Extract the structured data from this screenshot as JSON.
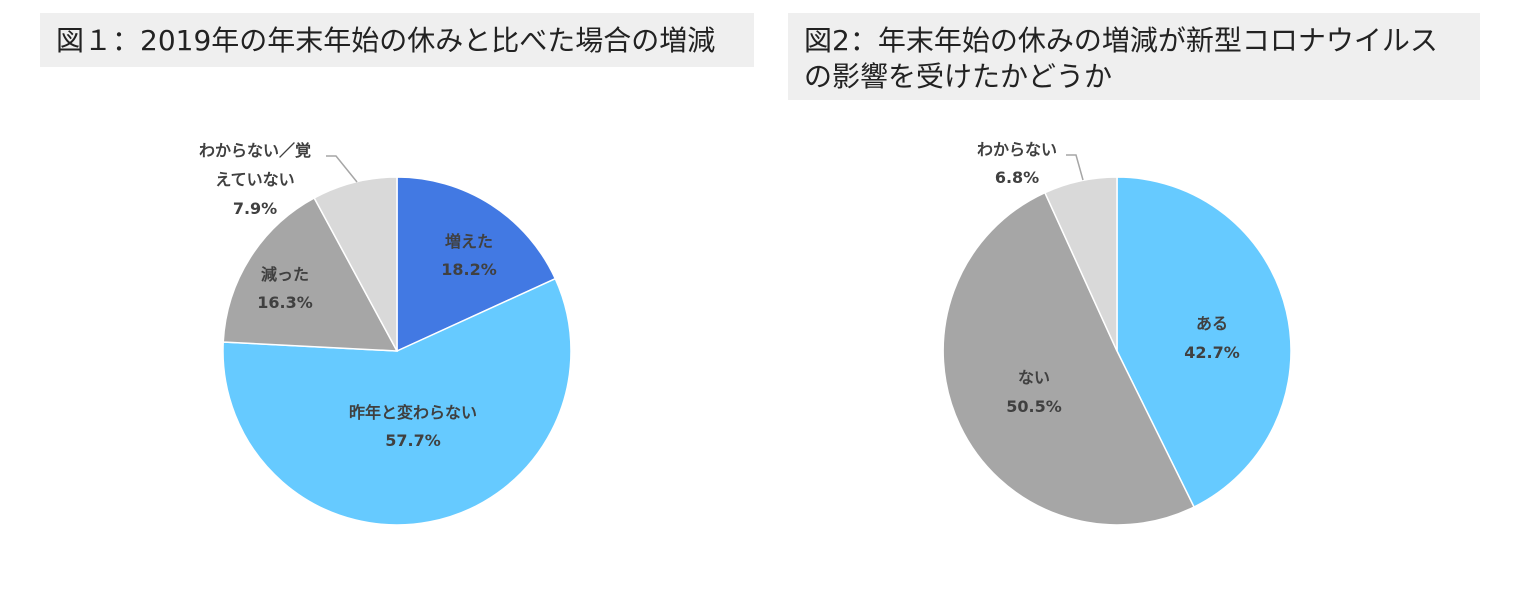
{
  "chart_data": [
    {
      "type": "pie",
      "title": "図１：2019年の年末年始の休みと比べた場合の増減",
      "start_angle_deg": 0,
      "direction": "clockwise",
      "slices": [
        {
          "label": "増えた",
          "value": 18.2,
          "value_text": "18.2%",
          "color": "#4279e3"
        },
        {
          "label": "昨年と変わらない",
          "value": 57.7,
          "value_text": "57.7%",
          "color": "#66caff"
        },
        {
          "label": "減った",
          "value": 16.3,
          "value_text": "16.3%",
          "color": "#a6a6a6"
        },
        {
          "label": "わからない／覚えていない",
          "label_lines": [
            "わからない／覚",
            "えていない"
          ],
          "value": 7.9,
          "value_text": "7.9%",
          "color": "#d9d9d9"
        }
      ]
    },
    {
      "type": "pie",
      "title": "図2：年末年始の休みの増減が新型コロナウイルスの影響を受けたかどうか",
      "title_lines": [
        "図2：年末年始の休みの増減が新型コロナウイルス",
        "の影響を受けたかどうか"
      ],
      "start_angle_deg": 0,
      "direction": "clockwise",
      "slices": [
        {
          "label": "ある",
          "value": 42.7,
          "value_text": "42.7%",
          "color": "#66caff"
        },
        {
          "label": "ない",
          "value": 50.5,
          "value_text": "50.5%",
          "color": "#a6a6a6"
        },
        {
          "label": "わからない",
          "value": 6.8,
          "value_text": "6.8%",
          "color": "#d9d9d9"
        }
      ]
    }
  ]
}
